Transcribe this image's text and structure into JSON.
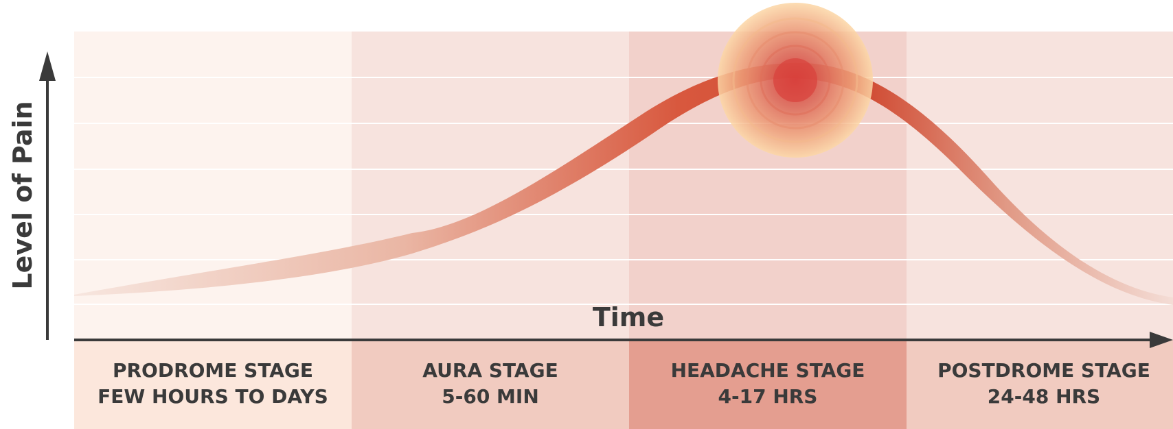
{
  "diagram": {
    "y_axis_label": "Level of Pain",
    "x_axis_label": "Time",
    "stages": [
      {
        "name": "PRODROME STAGE",
        "duration": "FEW HOURS TO DAYS",
        "band_color": "#fdf3ee",
        "label_bg": "#fce7dc"
      },
      {
        "name": "AURA STAGE",
        "duration": "5-60 MIN",
        "band_color": "#f7e3de",
        "label_bg": "#f1cbc0"
      },
      {
        "name": "HEADACHE STAGE",
        "duration": "4-17 HRS",
        "band_color": "#f2d1cb",
        "label_bg": "#e49e90"
      },
      {
        "name": "POSTDROME STAGE",
        "duration": "24-48 HRS",
        "band_color": "#f7e3de",
        "label_bg": "#f1cbc0"
      }
    ],
    "colors": {
      "axis": "#3a3a3a",
      "curve_light": "#f4d6cc",
      "curve_dark": "#d6533a",
      "peak_outer": "#fcd9a8",
      "peak_inner": "#d8423c"
    }
  }
}
